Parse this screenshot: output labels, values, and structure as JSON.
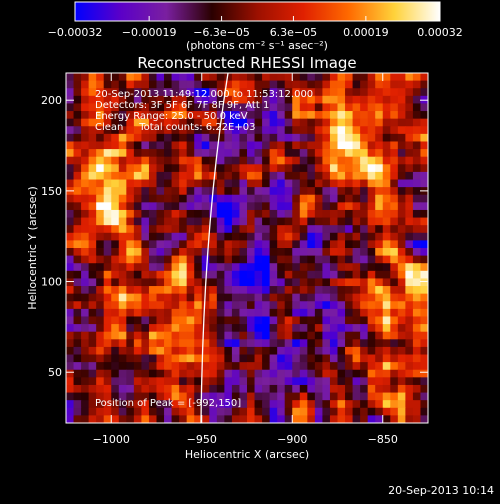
{
  "chart_data": {
    "type": "heatmap",
    "title": "Reconstructed RHESSI Image",
    "xlabel": "Heliocentric X (arcsec)",
    "ylabel": "Heliocentric Y (arcsec)",
    "xlim": [
      -1025,
      -825
    ],
    "ylim": [
      22,
      215
    ],
    "xticks": [
      -1000,
      -950,
      -900,
      -850
    ],
    "xtick_labels": [
      "−1000",
      "−950",
      "−900",
      "−850"
    ],
    "yticks": [
      50,
      100,
      150,
      200
    ],
    "ytick_labels": [
      "50",
      "100",
      "150",
      "200"
    ],
    "colorbar": {
      "range": [
        -0.00032,
        0.00032
      ],
      "ticks": [
        -0.00032,
        -0.00019,
        -6.3e-05,
        6.3e-05,
        0.00019,
        0.00032
      ],
      "tick_labels": [
        "−0.00032",
        "−0.00019",
        "−6.3e−05",
        "6.3e−05",
        "0.00019",
        "0.00032"
      ],
      "unit_label": "(photons cm⁻² s⁻¹ asec⁻²)",
      "colors": [
        "#0000ff",
        "#5b00c8",
        "#7a1fa0",
        "#2a0000",
        "#9c1000",
        "#e02000",
        "#ff6a00",
        "#ffd23a",
        "#ffffff"
      ]
    },
    "annotations": [
      "20-Sep-2013 11:49:12.000 to 11:53:12.000",
      "Detectors: 3F 5F 6F 7F 8F 9F, Att 1",
      "Energy Range: 25.0 - 50.0 keV",
      "Clean     Total counts: 6.22E+03"
    ],
    "peak_label": "Position of Peak = [-992,150]",
    "limb_color": "#ffffff",
    "grid": false
  },
  "footer": {
    "timestamp": "20-Sep-2013 10:14"
  }
}
